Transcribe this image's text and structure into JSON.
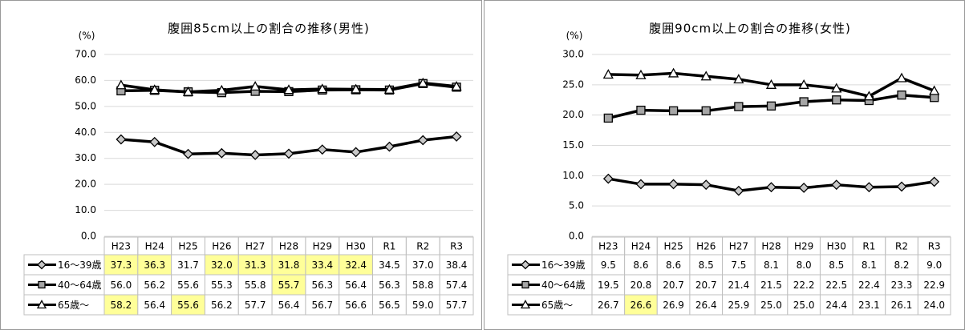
{
  "chart_data": [
    {
      "type": "line",
      "title": "腹囲85cm以上の割合の推移(男性)",
      "y_label": "(%)",
      "categories": [
        "H23",
        "H24",
        "H25",
        "H26",
        "H27",
        "H28",
        "H29",
        "H30",
        "R1",
        "R2",
        "R3"
      ],
      "ylim": [
        0,
        70
      ],
      "yticks": [
        {
          "value": 0,
          "label": "0.0"
        },
        {
          "value": 10,
          "label": "10.0"
        },
        {
          "value": 20,
          "label": "20.0"
        },
        {
          "value": 30,
          "label": "30.0"
        },
        {
          "value": 40,
          "label": "40.0"
        },
        {
          "value": 50,
          "label": "50.0"
        },
        {
          "value": 60,
          "label": "60.0"
        },
        {
          "value": 70,
          "label": "70.0"
        }
      ],
      "grid": true,
      "highlight_color": "#ffff99",
      "series": [
        {
          "name": "16～39歳",
          "color": "#000000",
          "marker": "diamond",
          "values": [
            37.3,
            36.3,
            31.7,
            32.0,
            31.3,
            31.8,
            33.4,
            32.4,
            34.5,
            37.0,
            38.4
          ],
          "value_labels": [
            "37.3",
            "36.3",
            "31.7",
            "32.0",
            "31.3",
            "31.8",
            "33.4",
            "32.4",
            "34.5",
            "37.0",
            "38.4"
          ],
          "highlighted": [
            0,
            1,
            3,
            4,
            5,
            6,
            7
          ]
        },
        {
          "name": "40～64歳",
          "color": "#000000",
          "marker": "square",
          "values": [
            56.0,
            56.2,
            55.6,
            55.3,
            55.8,
            55.7,
            56.3,
            56.4,
            56.3,
            58.8,
            57.4
          ],
          "value_labels": [
            "56.0",
            "56.2",
            "55.6",
            "55.3",
            "55.8",
            "55.7",
            "56.3",
            "56.4",
            "56.3",
            "58.8",
            "57.4"
          ],
          "highlighted": [
            5
          ]
        },
        {
          "name": "65歳～",
          "color": "#000000",
          "marker": "triangle",
          "values": [
            58.2,
            56.4,
            55.6,
            56.2,
            57.7,
            56.4,
            56.7,
            56.6,
            56.5,
            59.0,
            57.7
          ],
          "value_labels": [
            "58.2",
            "56.4",
            "55.6",
            "56.2",
            "57.7",
            "56.4",
            "56.7",
            "56.6",
            "56.5",
            "59.0",
            "57.7"
          ],
          "highlighted": [
            0,
            2
          ]
        }
      ]
    },
    {
      "type": "line",
      "title": "腹囲90cm以上の割合の推移(女性)",
      "y_label": "(%)",
      "categories": [
        "H23",
        "H24",
        "H25",
        "H26",
        "H27",
        "H28",
        "H29",
        "H30",
        "R1",
        "R2",
        "R3"
      ],
      "ylim": [
        0,
        30
      ],
      "yticks": [
        {
          "value": 0,
          "label": "0.0"
        },
        {
          "value": 5,
          "label": "5.0"
        },
        {
          "value": 10,
          "label": "10.0"
        },
        {
          "value": 15,
          "label": "15.0"
        },
        {
          "value": 20,
          "label": "20.0"
        },
        {
          "value": 25,
          "label": "25.0"
        },
        {
          "value": 30,
          "label": "30.0"
        }
      ],
      "grid": true,
      "highlight_color": "#ffff99",
      "series": [
        {
          "name": "16～39歳",
          "color": "#000000",
          "marker": "diamond",
          "values": [
            9.5,
            8.6,
            8.6,
            8.5,
            7.5,
            8.1,
            8.0,
            8.5,
            8.1,
            8.2,
            9.0
          ],
          "value_labels": [
            "9.5",
            "8.6",
            "8.6",
            "8.5",
            "7.5",
            "8.1",
            "8.0",
            "8.5",
            "8.1",
            "8.2",
            "9.0"
          ],
          "highlighted": []
        },
        {
          "name": "40～64歳",
          "color": "#000000",
          "marker": "square",
          "values": [
            19.5,
            20.8,
            20.7,
            20.7,
            21.4,
            21.5,
            22.2,
            22.5,
            22.4,
            23.3,
            22.9
          ],
          "value_labels": [
            "19.5",
            "20.8",
            "20.7",
            "20.7",
            "21.4",
            "21.5",
            "22.2",
            "22.5",
            "22.4",
            "23.3",
            "22.9"
          ],
          "highlighted": []
        },
        {
          "name": "65歳～",
          "color": "#000000",
          "marker": "triangle",
          "values": [
            26.7,
            26.6,
            26.9,
            26.4,
            25.9,
            25.0,
            25.0,
            24.4,
            23.1,
            26.1,
            24.0
          ],
          "value_labels": [
            "26.7",
            "26.6",
            "26.9",
            "26.4",
            "25.9",
            "25.0",
            "25.0",
            "24.4",
            "23.1",
            "26.1",
            "24.0"
          ],
          "highlighted": [
            1
          ]
        }
      ]
    }
  ]
}
